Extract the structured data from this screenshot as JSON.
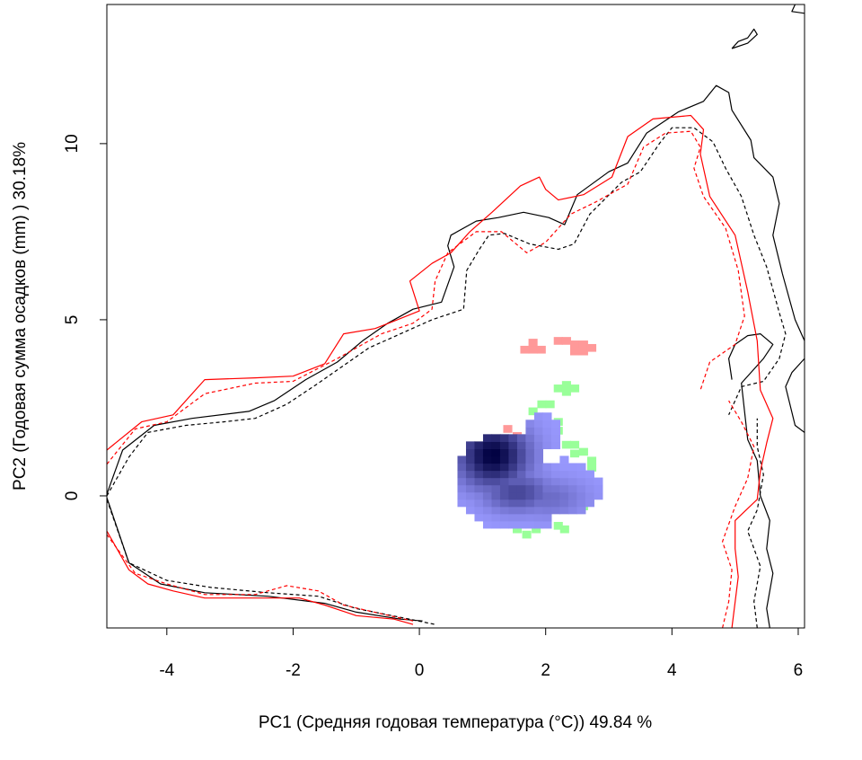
{
  "chart_data": {
    "type": "contour-density",
    "title": "",
    "xlabel": "PC1 (Средняя годовая температура (°C)) 49.84 %",
    "ylabel": "PC2 (Годовая сумма осадков  (mm) ) 30.18%",
    "xlim": [
      -4.95,
      6.1
    ],
    "ylim": [
      -3.75,
      13.95
    ],
    "x_ticks": [
      -4,
      -2,
      0,
      2,
      4,
      6
    ],
    "y_ticks": [
      0,
      5,
      10
    ],
    "x_tick_labels": [
      "-4",
      "-2",
      "0",
      "2",
      "4",
      "6"
    ],
    "y_tick_labels": [
      "0",
      "5",
      "10"
    ],
    "grid": false,
    "legend": "none",
    "colors": {
      "outline_black": "#000000",
      "outline_red": "#ff0000",
      "niche_1_only": "#ff9999",
      "niche_2_only": "#99ff99",
      "overlap_low": "#9999ff",
      "overlap_high": "#000040"
    },
    "environment_contours": [
      {
        "color": "#000000",
        "dash": "solid",
        "points": [
          [
            -4.95,
            0.05
          ],
          [
            -4.7,
            1.3
          ],
          [
            -4.2,
            2.0
          ],
          [
            -3.6,
            2.2
          ],
          [
            -2.7,
            2.4
          ],
          [
            -2.3,
            2.7
          ],
          [
            -1.8,
            3.3
          ],
          [
            -1.3,
            3.8
          ],
          [
            -0.9,
            4.4
          ],
          [
            -0.5,
            4.9
          ],
          [
            -0.1,
            5.3
          ],
          [
            0.35,
            5.5
          ],
          [
            0.55,
            6.5
          ],
          [
            0.45,
            7.1
          ],
          [
            0.5,
            7.4
          ],
          [
            0.9,
            7.8
          ],
          [
            1.25,
            7.9
          ],
          [
            1.65,
            8.05
          ],
          [
            2.05,
            7.9
          ],
          [
            2.3,
            7.7
          ],
          [
            2.5,
            8.55
          ],
          [
            3.0,
            9.2
          ],
          [
            3.3,
            9.45
          ],
          [
            3.6,
            10.3
          ],
          [
            4.1,
            10.9
          ],
          [
            4.5,
            11.2
          ],
          [
            4.7,
            11.65
          ],
          [
            4.9,
            11.45
          ],
          [
            4.95,
            10.95
          ],
          [
            5.25,
            10.1
          ],
          [
            5.3,
            9.6
          ],
          [
            5.6,
            9.05
          ],
          [
            5.7,
            8.3
          ],
          [
            5.6,
            7.4
          ],
          [
            5.75,
            6.3
          ],
          [
            5.95,
            5.0
          ],
          [
            6.1,
            4.4
          ],
          [
            6.1,
            3.9
          ],
          [
            5.9,
            3.5
          ],
          [
            5.8,
            3.1
          ],
          [
            5.95,
            2.0
          ],
          [
            6.1,
            1.8
          ]
        ]
      },
      {
        "color": "#000000",
        "dash": "solid",
        "points": [
          [
            -4.95,
            -0.05
          ],
          [
            -4.6,
            -1.9
          ],
          [
            -4.1,
            -2.5
          ],
          [
            -3.4,
            -2.75
          ],
          [
            -2.4,
            -2.85
          ],
          [
            -1.5,
            -3.05
          ],
          [
            -1.0,
            -3.3
          ],
          [
            -0.3,
            -3.5
          ],
          [
            0.05,
            -3.55
          ]
        ]
      },
      {
        "color": "#000000",
        "dash": "solid",
        "points": [
          [
            5.55,
            -3.75
          ],
          [
            5.5,
            -3.2
          ],
          [
            5.6,
            -2.2
          ],
          [
            5.5,
            -1.5
          ],
          [
            5.55,
            -0.7
          ],
          [
            5.4,
            0.0
          ],
          [
            5.35,
            1.0
          ],
          [
            5.2,
            1.6
          ],
          [
            5.15,
            2.4
          ],
          [
            5.1,
            3.2
          ],
          [
            5.45,
            3.9
          ],
          [
            5.6,
            4.3
          ],
          [
            5.4,
            4.6
          ],
          [
            5.2,
            4.55
          ],
          [
            5.0,
            4.3
          ],
          [
            4.9,
            3.9
          ],
          [
            4.95,
            3.3
          ]
        ]
      },
      {
        "color": "#000000",
        "dash": "solid",
        "points": [
          [
            4.95,
            12.7
          ],
          [
            5.2,
            12.85
          ],
          [
            5.35,
            13.1
          ],
          [
            5.3,
            13.25
          ],
          [
            5.2,
            13.0
          ],
          [
            5.05,
            12.9
          ],
          [
            4.95,
            12.7
          ]
        ]
      },
      {
        "color": "#000000",
        "dash": "solid",
        "points": [
          [
            5.95,
            13.95
          ],
          [
            5.9,
            13.75
          ],
          [
            6.1,
            13.7
          ]
        ]
      },
      {
        "color": "#000000",
        "dash": "dashed",
        "points": [
          [
            -4.95,
            0.0
          ],
          [
            -4.6,
            1.1
          ],
          [
            -4.3,
            1.8
          ],
          [
            -3.7,
            2.0
          ],
          [
            -3.1,
            2.1
          ],
          [
            -2.6,
            2.2
          ],
          [
            -2.1,
            2.6
          ],
          [
            -1.6,
            3.2
          ],
          [
            -1.2,
            3.7
          ],
          [
            -0.8,
            4.2
          ],
          [
            -0.3,
            4.6
          ],
          [
            0.2,
            5.0
          ],
          [
            0.7,
            5.3
          ],
          [
            0.75,
            6.4
          ],
          [
            0.95,
            7.0
          ],
          [
            1.1,
            7.4
          ],
          [
            1.35,
            7.45
          ],
          [
            1.75,
            7.15
          ],
          [
            2.2,
            7.0
          ],
          [
            2.45,
            7.15
          ],
          [
            2.7,
            8.0
          ],
          [
            3.2,
            8.9
          ],
          [
            3.5,
            9.2
          ],
          [
            3.8,
            10.0
          ],
          [
            4.0,
            10.45
          ],
          [
            4.35,
            10.45
          ],
          [
            4.65,
            10.05
          ],
          [
            4.85,
            9.3
          ],
          [
            5.1,
            8.5
          ],
          [
            5.3,
            7.4
          ],
          [
            5.5,
            6.5
          ],
          [
            5.7,
            5.2
          ],
          [
            5.8,
            4.6
          ],
          [
            5.7,
            3.9
          ],
          [
            5.45,
            3.25
          ],
          [
            5.1,
            3.1
          ],
          [
            4.9,
            2.3
          ]
        ]
      },
      {
        "color": "#000000",
        "dash": "dashed",
        "points": [
          [
            -4.95,
            -0.1
          ],
          [
            -4.6,
            -1.9
          ],
          [
            -4.0,
            -2.4
          ],
          [
            -3.3,
            -2.6
          ],
          [
            -2.4,
            -2.75
          ],
          [
            -1.6,
            -2.85
          ],
          [
            -1.0,
            -3.2
          ],
          [
            -0.3,
            -3.45
          ],
          [
            0.25,
            -3.65
          ]
        ]
      },
      {
        "color": "#000000",
        "dash": "dashed",
        "points": [
          [
            5.35,
            -3.75
          ],
          [
            5.3,
            -3.0
          ],
          [
            5.4,
            -2.0
          ],
          [
            5.2,
            -1.0
          ],
          [
            5.35,
            -0.4
          ],
          [
            5.45,
            0.6
          ],
          [
            5.35,
            1.4
          ],
          [
            5.35,
            2.2
          ]
        ]
      },
      {
        "color": "#ff0000",
        "dash": "solid",
        "points": [
          [
            -4.95,
            1.3
          ],
          [
            -4.4,
            2.1
          ],
          [
            -3.9,
            2.3
          ],
          [
            -3.4,
            3.3
          ],
          [
            -2.6,
            3.35
          ],
          [
            -2.0,
            3.4
          ],
          [
            -1.5,
            3.75
          ],
          [
            -1.2,
            4.6
          ],
          [
            -0.7,
            4.75
          ],
          [
            -0.35,
            5.0
          ],
          [
            0.0,
            5.25
          ],
          [
            -0.15,
            6.1
          ],
          [
            0.2,
            6.6
          ],
          [
            0.5,
            6.9
          ],
          [
            0.8,
            7.5
          ],
          [
            1.15,
            8.05
          ],
          [
            1.6,
            8.8
          ],
          [
            1.9,
            9.05
          ],
          [
            2.0,
            8.7
          ],
          [
            2.2,
            8.4
          ],
          [
            2.6,
            8.55
          ],
          [
            3.05,
            9.05
          ],
          [
            3.3,
            10.2
          ],
          [
            3.7,
            10.7
          ],
          [
            4.3,
            10.8
          ],
          [
            4.5,
            10.4
          ],
          [
            4.45,
            9.7
          ],
          [
            4.6,
            8.5
          ],
          [
            5.0,
            7.4
          ],
          [
            5.2,
            5.8
          ],
          [
            5.35,
            4.4
          ],
          [
            5.4,
            3.0
          ],
          [
            5.6,
            2.2
          ],
          [
            5.5,
            1.5
          ],
          [
            5.4,
            0.7
          ],
          [
            5.35,
            -0.1
          ],
          [
            5.0,
            -0.7
          ],
          [
            5.0,
            -1.5
          ],
          [
            5.05,
            -2.3
          ],
          [
            4.95,
            -3.75
          ]
        ]
      },
      {
        "color": "#ff0000",
        "dash": "solid",
        "points": [
          [
            -4.95,
            -1.0
          ],
          [
            -4.6,
            -2.1
          ],
          [
            -4.3,
            -2.5
          ],
          [
            -3.9,
            -2.7
          ],
          [
            -3.4,
            -2.9
          ],
          [
            -2.6,
            -2.9
          ],
          [
            -1.9,
            -2.9
          ],
          [
            -1.5,
            -3.1
          ],
          [
            -1.0,
            -3.4
          ],
          [
            -0.4,
            -3.5
          ],
          [
            -0.1,
            -3.65
          ]
        ]
      },
      {
        "color": "#ff0000",
        "dash": "dashed",
        "points": [
          [
            -4.95,
            0.9
          ],
          [
            -4.5,
            1.9
          ],
          [
            -4.0,
            2.1
          ],
          [
            -3.4,
            2.9
          ],
          [
            -2.6,
            3.2
          ],
          [
            -2.0,
            3.25
          ],
          [
            -1.3,
            3.9
          ],
          [
            -0.6,
            4.6
          ],
          [
            -0.1,
            4.9
          ],
          [
            0.2,
            5.3
          ],
          [
            0.25,
            6.1
          ],
          [
            0.45,
            6.9
          ],
          [
            0.9,
            7.5
          ],
          [
            1.3,
            7.5
          ],
          [
            1.7,
            6.9
          ],
          [
            2.0,
            7.2
          ],
          [
            2.4,
            8.0
          ],
          [
            2.8,
            8.35
          ],
          [
            3.3,
            8.85
          ],
          [
            3.55,
            9.9
          ],
          [
            3.9,
            10.3
          ],
          [
            4.3,
            10.35
          ],
          [
            4.45,
            9.9
          ],
          [
            4.35,
            9.3
          ],
          [
            4.5,
            8.5
          ],
          [
            4.85,
            7.6
          ],
          [
            5.05,
            6.4
          ],
          [
            5.15,
            5.1
          ],
          [
            5.0,
            4.3
          ],
          [
            4.6,
            3.8
          ],
          [
            4.45,
            3.0
          ]
        ]
      },
      {
        "color": "#ff0000",
        "dash": "dashed",
        "points": [
          [
            -4.95,
            -1.1
          ],
          [
            -4.5,
            -2.2
          ],
          [
            -4.0,
            -2.5
          ],
          [
            -3.4,
            -2.8
          ],
          [
            -2.6,
            -2.8
          ],
          [
            -2.1,
            -2.55
          ],
          [
            -1.6,
            -2.7
          ],
          [
            -1.2,
            -3.1
          ],
          [
            -0.6,
            -3.35
          ],
          [
            -0.1,
            -3.55
          ]
        ]
      },
      {
        "color": "#ff0000",
        "dash": "dashed",
        "points": [
          [
            4.8,
            -3.75
          ],
          [
            4.9,
            -3.0
          ],
          [
            4.95,
            -2.1
          ],
          [
            4.8,
            -1.3
          ],
          [
            5.0,
            -0.3
          ],
          [
            5.2,
            0.5
          ],
          [
            5.3,
            1.4
          ],
          [
            5.1,
            2.1
          ],
          [
            4.9,
            2.7
          ]
        ]
      }
    ],
    "niche_cells": {
      "cell_size": [
        0.135,
        0.205
      ],
      "niche_1_only": [
        [
          1.8,
          4.15
        ],
        [
          1.8,
          4.35
        ],
        [
          1.67,
          4.15
        ],
        [
          1.93,
          4.15
        ],
        [
          2.2,
          4.4
        ],
        [
          2.33,
          4.4
        ],
        [
          2.46,
          4.3
        ],
        [
          2.6,
          4.3
        ],
        [
          2.6,
          4.1
        ],
        [
          2.73,
          4.2
        ],
        [
          2.46,
          4.1
        ],
        [
          1.4,
          1.9
        ],
        [
          1.55,
          1.7
        ],
        [
          2.6,
          0.25
        ],
        [
          1.05,
          -0.3
        ]
      ],
      "niche_2_only": [
        [
          2.33,
          3.15
        ],
        [
          2.2,
          3.05
        ],
        [
          2.46,
          3.05
        ],
        [
          2.33,
          2.95
        ],
        [
          1.94,
          2.6
        ],
        [
          2.07,
          2.6
        ],
        [
          1.8,
          2.4
        ],
        [
          2.2,
          2.1
        ],
        [
          2.2,
          1.85
        ],
        [
          2.33,
          1.45
        ],
        [
          2.46,
          1.45
        ],
        [
          2.46,
          1.2
        ],
        [
          2.6,
          1.25
        ],
        [
          2.73,
          1.0
        ],
        [
          2.73,
          0.8
        ],
        [
          0.75,
          0.85
        ],
        [
          0.75,
          0.6
        ],
        [
          0.9,
          0.1
        ],
        [
          1.05,
          -0.55
        ],
        [
          2.6,
          -0.3
        ],
        [
          1.55,
          -0.95
        ],
        [
          1.7,
          -1.1
        ],
        [
          1.85,
          -0.95
        ],
        [
          2.2,
          -0.85
        ],
        [
          2.3,
          -0.95
        ]
      ],
      "overlap_peak": [
        1.17,
        1.15
      ]
    }
  }
}
